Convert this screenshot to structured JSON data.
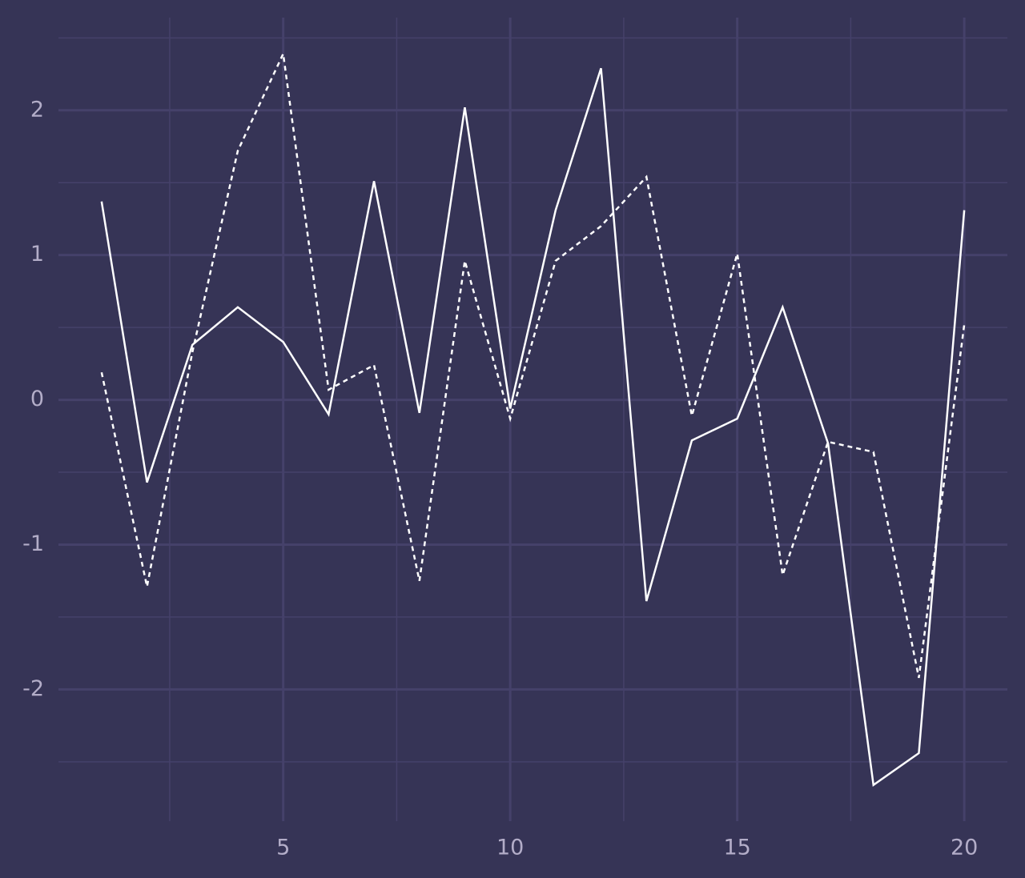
{
  "chart_data": {
    "type": "line",
    "x": [
      1,
      2,
      3,
      4,
      5,
      6,
      7,
      8,
      9,
      10,
      11,
      12,
      13,
      14,
      15,
      16,
      17,
      18,
      19,
      20
    ],
    "series": [
      {
        "color": "#ffffff",
        "linestyle": "solid",
        "values": [
          1.37,
          -0.57,
          0.38,
          0.64,
          0.4,
          -0.1,
          1.51,
          -0.09,
          2.02,
          -0.06,
          1.31,
          2.29,
          -1.39,
          -0.28,
          -0.13,
          0.64,
          -0.3,
          -2.66,
          -2.44,
          1.31
        ]
      },
      {
        "color": "#ffffff",
        "linestyle": "dashed",
        "values": [
          0.19,
          -1.29,
          0.33,
          1.72,
          2.39,
          0.07,
          0.24,
          -1.25,
          0.96,
          -0.13,
          0.96,
          1.2,
          1.54,
          -0.11,
          1.01,
          -1.21,
          -0.29,
          -0.36,
          -1.92,
          0.52
        ]
      }
    ],
    "xlim": [
      0.05,
      20.95
    ],
    "ylim": [
      -2.91,
      2.64
    ],
    "xticks": [
      5,
      10,
      15,
      20
    ],
    "yticks": [
      -2,
      -1,
      0,
      1,
      2
    ],
    "xminor": [
      2.5,
      7.5,
      12.5,
      17.5
    ],
    "yminor": [
      -2.5,
      -1.5,
      -0.5,
      0.5,
      1.5,
      2.5
    ],
    "grid": true,
    "background": "#363456",
    "grid_color": "#45416a"
  }
}
